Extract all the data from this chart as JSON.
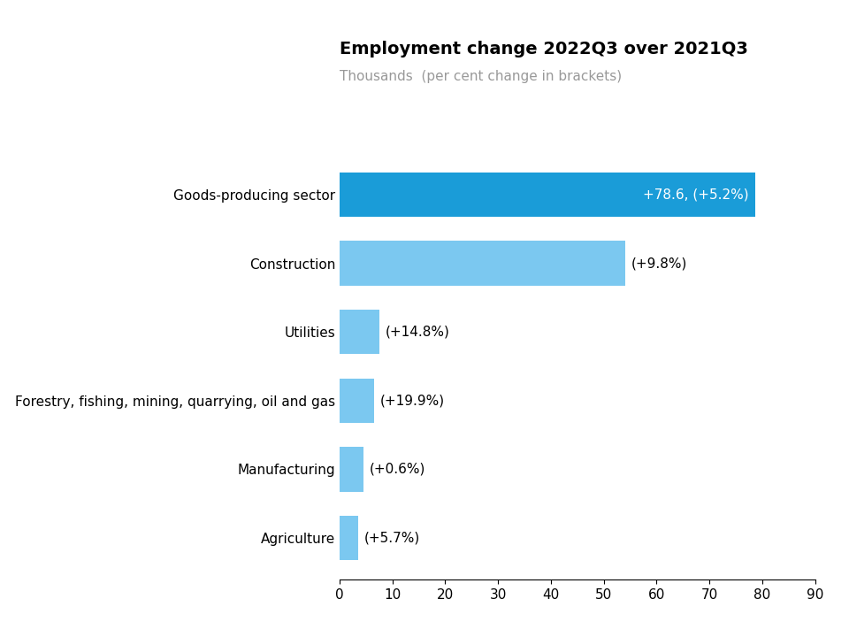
{
  "title": "Employment change 2022Q3 over 2021Q3",
  "subtitle": "Thousands  (per cent change in brackets)",
  "categories": [
    "Goods-producing sector",
    "Construction",
    "Utilities",
    "Forestry, fishing, mining, quarrying, oil and gas",
    "Manufacturing",
    "Agriculture"
  ],
  "values": [
    78.6,
    54.0,
    7.5,
    6.5,
    4.5,
    3.5
  ],
  "labels": [
    "+78.6, (+5.2%)",
    "(+9.8%)",
    "(+14.8%)",
    "(+19.9%)",
    "(+0.6%)",
    "(+5.7%)"
  ],
  "bar_colors": [
    "#1a9cd8",
    "#7bc8f0",
    "#7bc8f0",
    "#7bc8f0",
    "#7bc8f0",
    "#7bc8f0"
  ],
  "label_colors": [
    "white",
    "black",
    "black",
    "black",
    "black",
    "black"
  ],
  "title_fontsize": 14,
  "subtitle_fontsize": 11,
  "label_fontsize": 11,
  "tick_fontsize": 11,
  "category_fontsize": 11,
  "xlim": [
    0,
    90
  ],
  "xticks": [
    0,
    10,
    20,
    30,
    40,
    50,
    60,
    70,
    80,
    90
  ],
  "background_color": "#ffffff",
  "bar_height": 0.65
}
